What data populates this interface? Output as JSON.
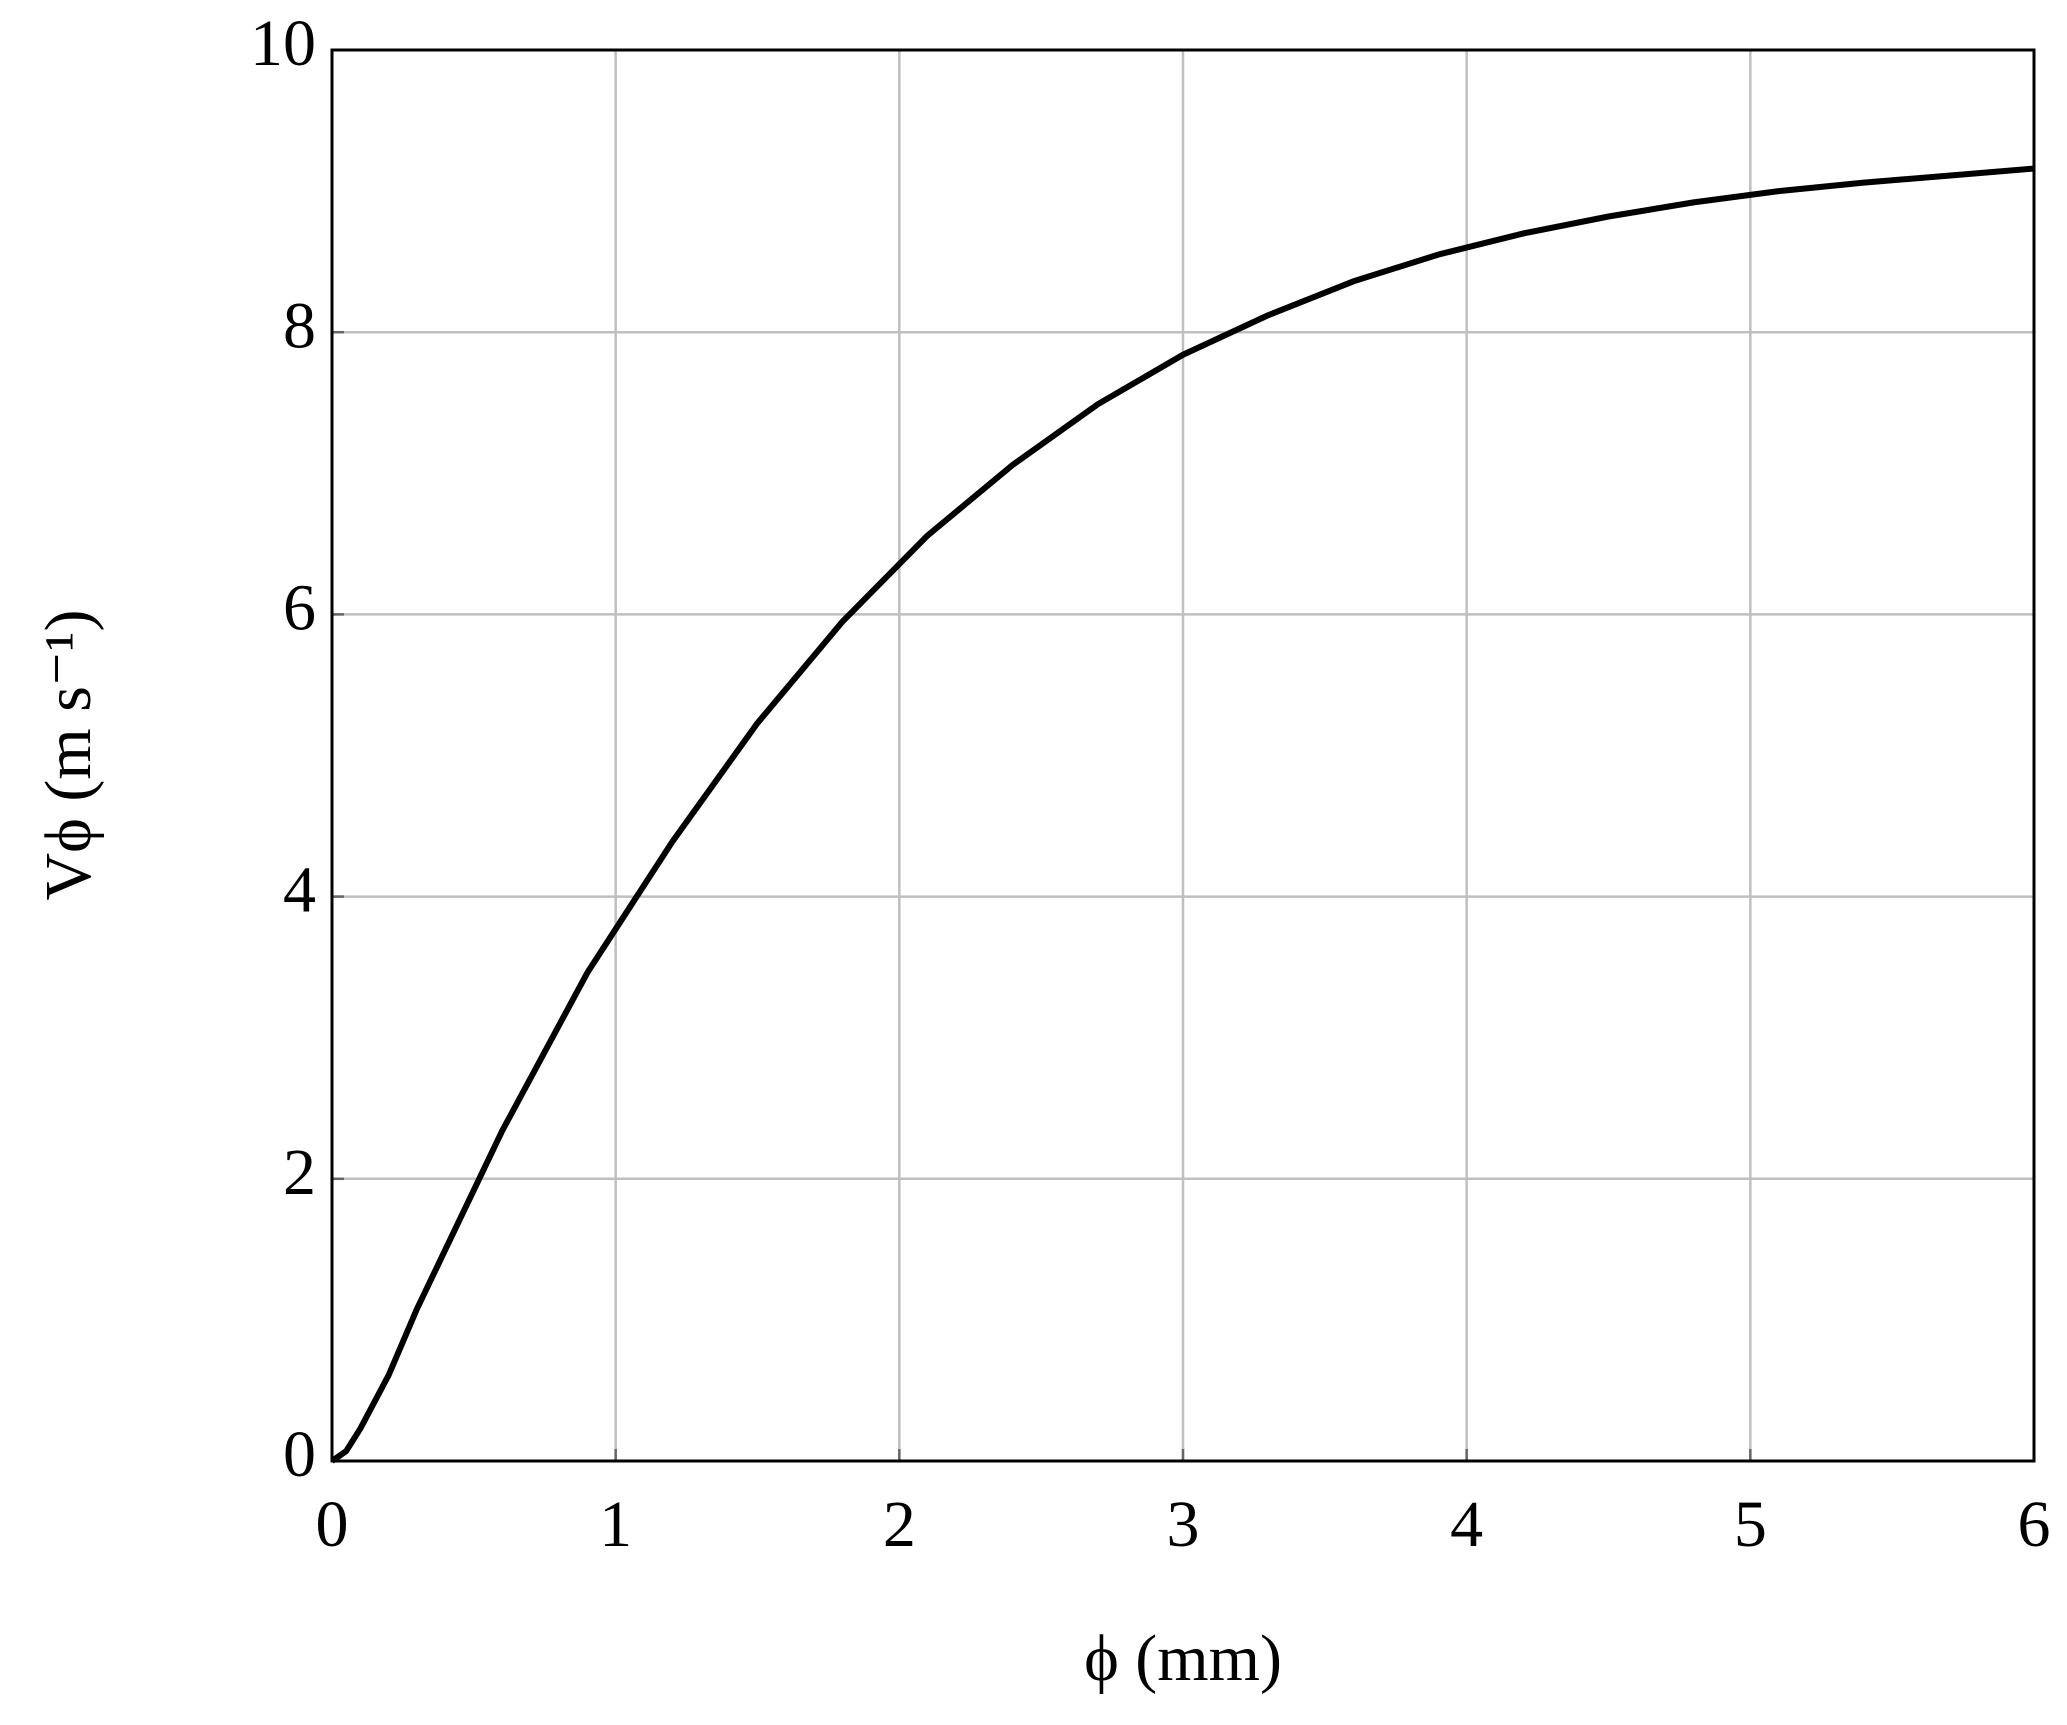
{
  "chart_data": {
    "type": "line",
    "x_label": "ϕ (mm)",
    "y_label": "Vϕ (m s⁻¹)",
    "x": [
      0,
      0.05,
      0.1,
      0.2,
      0.3,
      0.6,
      0.9,
      1.2,
      1.5,
      1.8,
      2.1,
      2.4,
      2.7,
      3.0,
      3.3,
      3.6,
      3.9,
      4.2,
      4.5,
      4.8,
      5.1,
      5.4,
      5.7,
      6.0
    ],
    "series": [
      {
        "color": "#000000",
        "values": [
          0,
          0.07,
          0.23,
          0.61,
          1.08,
          2.34,
          3.46,
          4.39,
          5.23,
          5.95,
          6.56,
          7.06,
          7.49,
          7.84,
          8.12,
          8.36,
          8.55,
          8.7,
          8.82,
          8.92,
          9.0,
          9.06,
          9.11,
          9.16
        ]
      }
    ],
    "xlim": [
      0,
      6
    ],
    "xticks": [
      0,
      1,
      2,
      3,
      4,
      5,
      6
    ],
    "ylim": [
      0,
      10
    ],
    "yticks": [
      0,
      2,
      4,
      6,
      8,
      10
    ],
    "grid": true
  }
}
